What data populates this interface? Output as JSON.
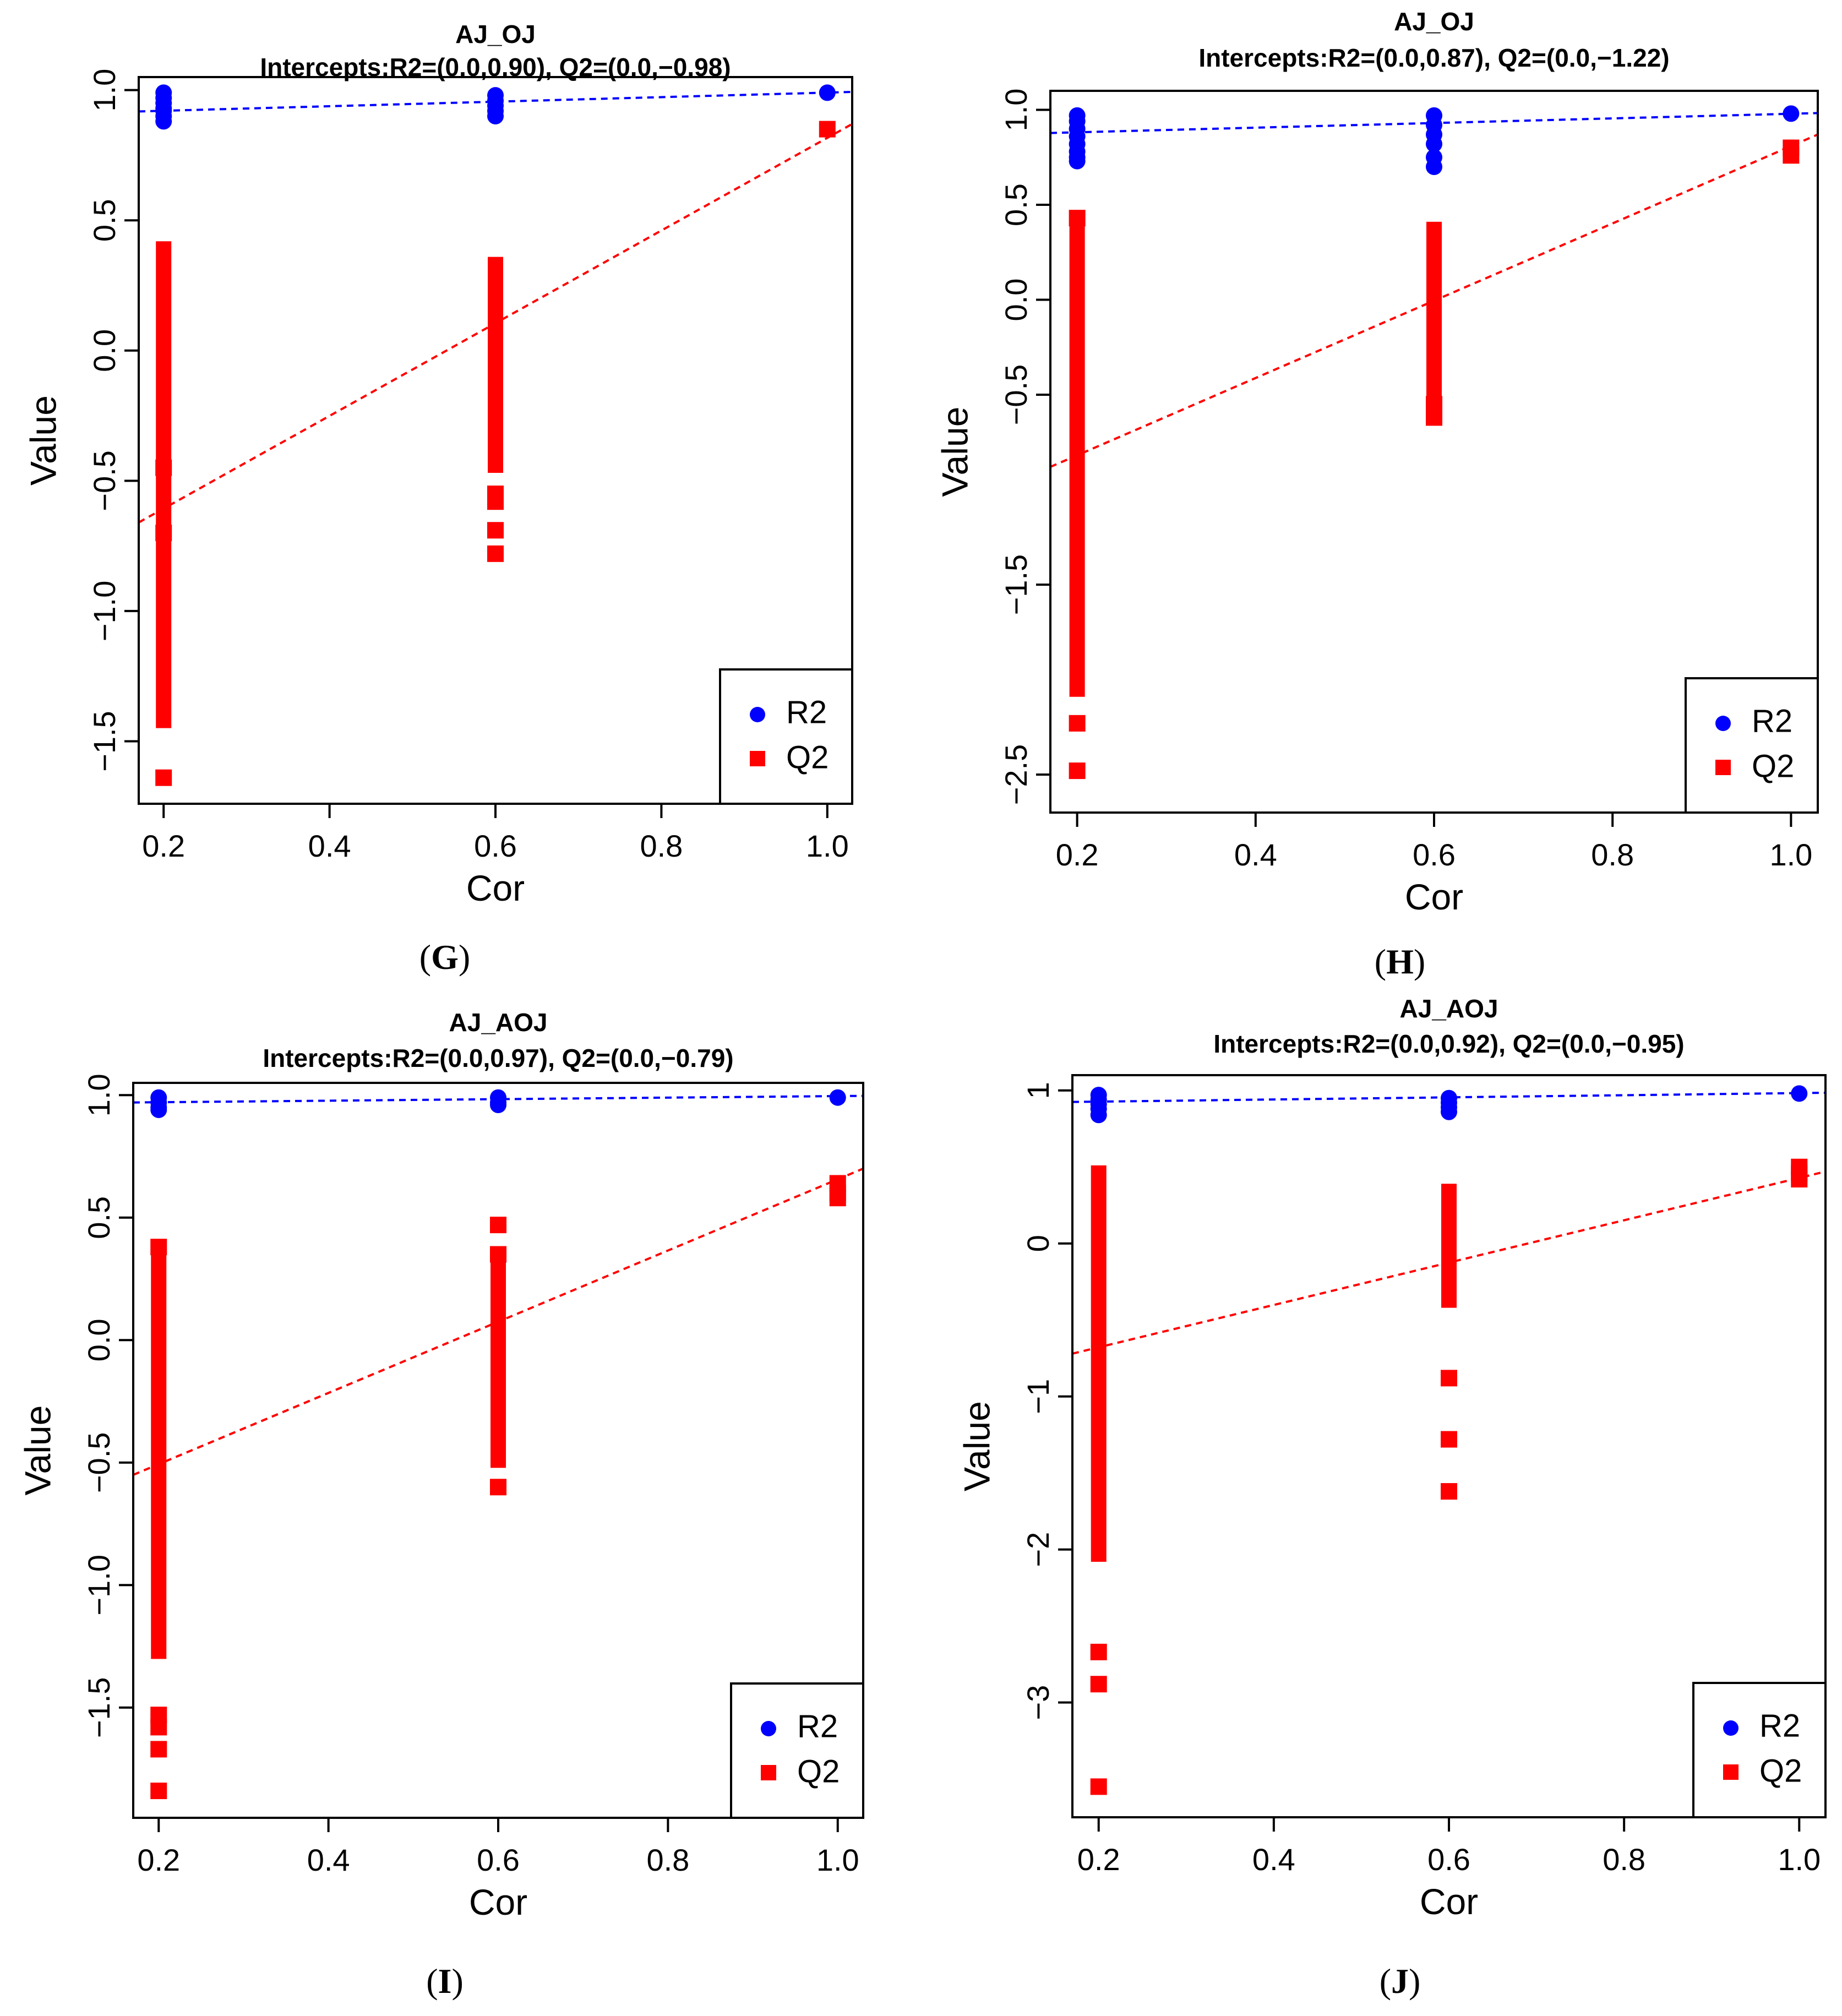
{
  "chart_data": [
    {
      "type": "scatter",
      "panel_label": "G",
      "title": "AJ_OJ",
      "subtitle": "Intercepts:R2=(0.0,0.90), Q2=(0.0,−0.98)",
      "xlabel": "Cor",
      "ylabel": "Value",
      "xlim": [
        0.17,
        1.03
      ],
      "ylim": [
        -1.74,
        1.05
      ],
      "xticks": [
        0.2,
        0.4,
        0.6,
        0.8,
        1.0
      ],
      "xtick_labels": [
        "0.2",
        "0.4",
        "0.6",
        "0.8",
        "1.0"
      ],
      "yticks": [
        -1.5,
        -1.0,
        -0.5,
        0.0,
        0.5,
        1.0
      ],
      "ytick_labels": [
        "−1.5",
        "−1.0",
        "−0.5",
        "0.0",
        "0.5",
        "1.0"
      ],
      "legend": {
        "position": "bottom-right",
        "entries": [
          "R2",
          "Q2"
        ]
      },
      "series": [
        {
          "name": "R2",
          "color": "#0000ff",
          "marker": "circle",
          "x": [
            0.2,
            0.2,
            0.2,
            0.2,
            0.2,
            0.2,
            0.2,
            0.6,
            0.6,
            0.6,
            0.6,
            0.6,
            1.0
          ],
          "y": [
            0.99,
            0.97,
            0.95,
            0.93,
            0.92,
            0.9,
            0.88,
            0.98,
            0.96,
            0.94,
            0.92,
            0.9,
            0.99
          ]
        },
        {
          "name": "Q2",
          "color": "#ff0000",
          "marker": "square",
          "x": [
            0.2,
            0.2,
            0.2,
            0.6,
            0.6,
            0.6,
            0.6,
            1.0
          ],
          "y": [
            -1.64,
            -0.7,
            -0.45,
            -0.78,
            -0.69,
            -0.58,
            -0.55,
            0.85
          ]
        }
      ],
      "bands": [
        {
          "series": "Q2",
          "x": 0.2,
          "y_min": -1.42,
          "y_max": 0.39
        },
        {
          "series": "Q2",
          "x": 0.6,
          "y_min": -0.44,
          "y_max": 0.33
        }
      ],
      "regression_lines": [
        {
          "series": "R2",
          "x": [
            0.17,
            1.03
          ],
          "y": [
            0.918,
            0.993
          ]
        },
        {
          "series": "Q2",
          "x": [
            0.17,
            1.03
          ],
          "y": [
            -0.66,
            0.87
          ]
        }
      ]
    },
    {
      "type": "scatter",
      "panel_label": "H",
      "title": "AJ_OJ",
      "subtitle": "Intercepts:R2=(0.0,0.87), Q2=(0.0,−1.22)",
      "xlabel": "Cor",
      "ylabel": "Value",
      "xlim": [
        0.17,
        1.03
      ],
      "ylim": [
        -2.7,
        1.1
      ],
      "xticks": [
        0.2,
        0.4,
        0.6,
        0.8,
        1.0
      ],
      "xtick_labels": [
        "0.2",
        "0.4",
        "0.6",
        "0.8",
        "1.0"
      ],
      "yticks": [
        -2.5,
        -1.5,
        -0.5,
        0.0,
        0.5,
        1.0
      ],
      "ytick_labels": [
        "−2.5",
        "−1.5",
        "−0.5",
        "0.0",
        "0.5",
        "1.0"
      ],
      "legend": {
        "position": "bottom-right",
        "entries": [
          "R2",
          "Q2"
        ]
      },
      "series": [
        {
          "name": "R2",
          "color": "#0000ff",
          "marker": "circle",
          "x": [
            0.2,
            0.2,
            0.2,
            0.2,
            0.2,
            0.2,
            0.2,
            0.2,
            0.6,
            0.6,
            0.6,
            0.6,
            0.6,
            0.6,
            1.0
          ],
          "y": [
            0.97,
            0.94,
            0.9,
            0.86,
            0.82,
            0.78,
            0.75,
            0.73,
            0.97,
            0.92,
            0.87,
            0.82,
            0.75,
            0.7,
            0.98
          ]
        },
        {
          "name": "Q2",
          "color": "#ff0000",
          "marker": "square",
          "x": [
            0.2,
            0.2,
            0.2,
            0.6,
            0.6,
            1.0,
            1.0
          ],
          "y": [
            -2.48,
            -2.23,
            0.43,
            -0.55,
            -0.62,
            0.8,
            0.76
          ]
        }
      ],
      "bands": [
        {
          "series": "Q2",
          "x": 0.2,
          "y_min": -2.05,
          "y_max": 0.35
        },
        {
          "series": "Q2",
          "x": 0.6,
          "y_min": -0.5,
          "y_max": 0.37
        }
      ],
      "regression_lines": [
        {
          "series": "R2",
          "x": [
            0.17,
            1.03
          ],
          "y": [
            0.878,
            0.983
          ]
        },
        {
          "series": "Q2",
          "x": [
            0.17,
            1.03
          ],
          "y": [
            -0.88,
            0.87
          ]
        }
      ]
    },
    {
      "type": "scatter",
      "panel_label": "I",
      "title": "AJ_AOJ",
      "subtitle": "Intercepts:R2=(0.0,0.97), Q2=(0.0,−0.79)",
      "xlabel": "Cor",
      "ylabel": "Value",
      "xlim": [
        0.17,
        1.03
      ],
      "ylim": [
        -1.95,
        1.05
      ],
      "xticks": [
        0.2,
        0.4,
        0.6,
        0.8,
        1.0
      ],
      "xtick_labels": [
        "0.2",
        "0.4",
        "0.6",
        "0.8",
        "1.0"
      ],
      "yticks": [
        -1.5,
        -1.0,
        -0.5,
        0.0,
        0.5,
        1.0
      ],
      "ytick_labels": [
        "−1.5",
        "−1.0",
        "−0.5",
        "0.0",
        "0.5",
        "1.0"
      ],
      "legend": {
        "position": "bottom-right",
        "entries": [
          "R2",
          "Q2"
        ]
      },
      "series": [
        {
          "name": "R2",
          "color": "#0000ff",
          "marker": "circle",
          "x": [
            0.2,
            0.2,
            0.2,
            0.2,
            0.6,
            0.6,
            0.6,
            1.0
          ],
          "y": [
            0.99,
            0.97,
            0.95,
            0.94,
            0.99,
            0.97,
            0.96,
            0.99
          ]
        },
        {
          "name": "Q2",
          "color": "#ff0000",
          "marker": "square",
          "x": [
            0.2,
            0.2,
            0.2,
            0.2,
            0.2,
            0.6,
            0.6,
            0.6,
            1.0,
            1.0,
            1.0
          ],
          "y": [
            -1.84,
            -1.67,
            -1.58,
            -1.53,
            0.38,
            -0.6,
            0.47,
            0.35,
            0.64,
            0.6,
            0.58
          ]
        }
      ],
      "bands": [
        {
          "series": "Q2",
          "x": 0.2,
          "y_min": -1.27,
          "y_max": 0.38
        },
        {
          "series": "Q2",
          "x": 0.6,
          "y_min": -0.49,
          "y_max": 0.29
        }
      ],
      "regression_lines": [
        {
          "series": "R2",
          "x": [
            0.17,
            1.03
          ],
          "y": [
            0.97,
            0.997
          ]
        },
        {
          "series": "Q2",
          "x": [
            0.17,
            1.03
          ],
          "y": [
            -0.55,
            0.7
          ]
        }
      ]
    },
    {
      "type": "scatter",
      "panel_label": "J",
      "title": "AJ_AOJ",
      "subtitle": "Intercepts:R2=(0.0,0.92), Q2=(0.0,−0.95)",
      "xlabel": "Cor",
      "ylabel": "Value",
      "xlim": [
        0.17,
        1.03
      ],
      "ylim": [
        -3.75,
        1.1
      ],
      "xticks": [
        0.2,
        0.4,
        0.6,
        0.8,
        1.0
      ],
      "xtick_labels": [
        "0.2",
        "0.4",
        "0.6",
        "0.8",
        "1.0"
      ],
      "yticks": [
        -3,
        -2,
        -1,
        0,
        1
      ],
      "ytick_labels": [
        "−3",
        "−2",
        "−1",
        "0",
        "1"
      ],
      "legend": {
        "position": "bottom-right",
        "entries": [
          "R2",
          "Q2"
        ]
      },
      "series": [
        {
          "name": "R2",
          "color": "#0000ff",
          "marker": "circle",
          "x": [
            0.2,
            0.2,
            0.2,
            0.2,
            0.2,
            0.6,
            0.6,
            0.6,
            0.6,
            1.0
          ],
          "y": [
            0.97,
            0.94,
            0.91,
            0.88,
            0.84,
            0.95,
            0.92,
            0.89,
            0.86,
            0.98
          ]
        },
        {
          "name": "Q2",
          "color": "#ff0000",
          "marker": "square",
          "x": [
            0.2,
            0.2,
            0.2,
            0.6,
            0.6,
            0.6,
            1.0,
            1.0,
            1.0
          ],
          "y": [
            -3.55,
            -2.88,
            -2.67,
            -1.62,
            -1.28,
            -0.88,
            0.5,
            0.46,
            0.42
          ]
        }
      ],
      "bands": [
        {
          "series": "Q2",
          "x": 0.2,
          "y_min": -2.03,
          "y_max": 0.46
        },
        {
          "series": "Q2",
          "x": 0.6,
          "y_min": -0.37,
          "y_max": 0.34
        }
      ],
      "regression_lines": [
        {
          "series": "R2",
          "x": [
            0.17,
            1.03
          ],
          "y": [
            0.925,
            0.985
          ]
        },
        {
          "series": "Q2",
          "x": [
            0.17,
            1.03
          ],
          "y": [
            -0.72,
            0.47
          ]
        }
      ]
    }
  ]
}
